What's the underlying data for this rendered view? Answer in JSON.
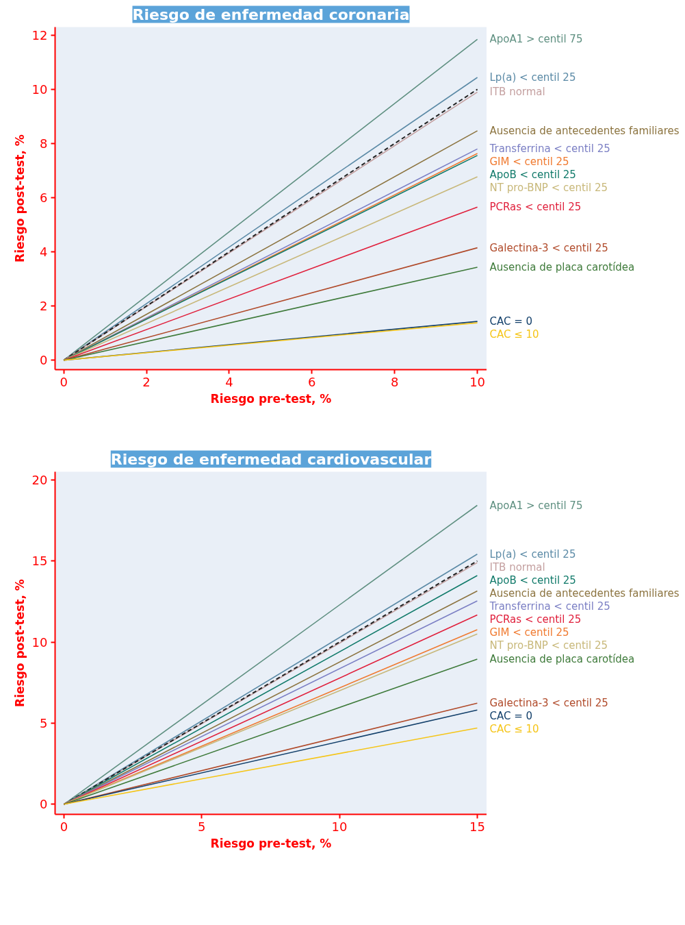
{
  "chart_data": [
    {
      "type": "line",
      "title": "Riesgo de enfermedad coronaria",
      "xlabel": "Riesgo pre-test, %",
      "ylabel": "Riesgo post-test, %",
      "x": [
        0,
        10
      ],
      "xlim": [
        -0.21,
        10.23
      ],
      "ylim": [
        -0.35,
        12.3
      ],
      "xticks": [
        0,
        2,
        4,
        6,
        8,
        10
      ],
      "yticks": [
        0,
        2,
        4,
        6,
        8,
        10,
        12
      ],
      "grid": false,
      "marker": "none",
      "series": [
        {
          "name": "ApoA1 > centil 75",
          "color": "#5e8f80",
          "values": [
            0,
            11.85
          ]
        },
        {
          "name": "Lp(a) < centil 25",
          "color": "#5b8aa6",
          "values": [
            0,
            10.44
          ]
        },
        {
          "name": "ITB normal",
          "color": "#c4a0a0",
          "values": [
            0,
            9.9
          ]
        },
        {
          "color": "#222222",
          "line_style": "dashed",
          "values": [
            0,
            10
          ]
        },
        {
          "name": "Ausencia de antecedentes familiares",
          "color": "#8c7440",
          "values": [
            0,
            8.47
          ]
        },
        {
          "name": "Transferrina < centil 25",
          "color": "#7b7fc4",
          "values": [
            0,
            7.8
          ]
        },
        {
          "name": "GIM < centil 25",
          "color": "#f07a30",
          "values": [
            0,
            7.63
          ]
        },
        {
          "name": "ApoB < centil 25",
          "color": "#117a6a",
          "values": [
            0,
            7.56
          ]
        },
        {
          "name": "NT pro-BNP < centil 25",
          "color": "#c8b87a",
          "values": [
            0,
            6.77
          ]
        },
        {
          "name": "PCRas < centil 25",
          "color": "#e0203c",
          "values": [
            0,
            5.65
          ]
        },
        {
          "name": "Galectina-3 < centil 25",
          "color": "#b04a2a",
          "values": [
            0,
            4.15
          ]
        },
        {
          "name": "Ausencia de placa carotídea",
          "color": "#3e7a3a",
          "values": [
            0,
            3.43
          ]
        },
        {
          "name": "CAC = 0",
          "color": "#123f6a",
          "values": [
            0,
            1.43
          ]
        },
        {
          "name": "CAC ≤ 10",
          "color": "#f5c518",
          "values": [
            0,
            1.38
          ]
        }
      ]
    },
    {
      "type": "line",
      "title": "Riesgo de enfermedad cardiovascular",
      "xlabel": "Riesgo pre-test, %",
      "ylabel": "Riesgo post-test, %",
      "x": [
        0,
        15
      ],
      "xlim": [
        -0.32,
        15.35
      ],
      "ylim": [
        -0.62,
        20.5
      ],
      "xticks": [
        0,
        5,
        10,
        15
      ],
      "yticks": [
        0,
        5,
        10,
        15,
        20
      ],
      "grid": false,
      "marker": "none",
      "series": [
        {
          "name": "ApoA1 > centil 75",
          "color": "#5e8f80",
          "values": [
            0,
            18.43
          ]
        },
        {
          "name": "Lp(a) < centil 25",
          "color": "#5b8aa6",
          "values": [
            0,
            15.42
          ]
        },
        {
          "name": "ITB normal",
          "color": "#c4a0a0",
          "values": [
            0,
            14.9
          ]
        },
        {
          "color": "#222222",
          "line_style": "dashed",
          "values": [
            0,
            15
          ]
        },
        {
          "name": "ApoB < centil 25",
          "color": "#117a6a",
          "values": [
            0,
            14.1
          ]
        },
        {
          "name": "Ausencia de antecedentes familiares",
          "color": "#8c7440",
          "values": [
            0,
            13.15
          ]
        },
        {
          "name": "Transferrina < centil 25",
          "color": "#7b7fc4",
          "values": [
            0,
            12.54
          ]
        },
        {
          "name": "PCRas < centil 25",
          "color": "#e0203c",
          "values": [
            0,
            11.67
          ]
        },
        {
          "name": "GIM < centil 25",
          "color": "#f07a30",
          "values": [
            0,
            10.76
          ]
        },
        {
          "name": "NT pro-BNP < centil 25",
          "color": "#c8b87a",
          "values": [
            0,
            10.5
          ]
        },
        {
          "name": "Ausencia de placa carotídea",
          "color": "#3e7a3a",
          "values": [
            0,
            8.95
          ]
        },
        {
          "name": "Galectina-3 < centil 25",
          "color": "#b04a2a",
          "values": [
            0,
            6.23
          ]
        },
        {
          "name": "CAC = 0",
          "color": "#123f6a",
          "values": [
            0,
            5.81
          ]
        },
        {
          "name": "CAC ≤ 10",
          "color": "#f5c518",
          "values": [
            0,
            4.7
          ]
        }
      ]
    }
  ]
}
